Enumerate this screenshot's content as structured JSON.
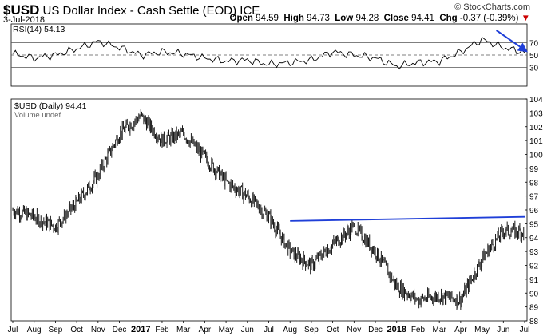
{
  "header": {
    "symbol": "$USD",
    "name": "US Dollar Index - Cash Settle (EOD)",
    "exchange": "ICE",
    "date": "3-Jul-2018",
    "brand": "© StockCharts.com",
    "open_label": "Open",
    "open": "94.59",
    "high_label": "High",
    "high": "94.73",
    "low_label": "Low",
    "low": "94.28",
    "close_label": "Close",
    "close": "94.41",
    "chg_label": "Chg",
    "chg": "-0.37 (-0.39%)",
    "chg_arrow": "▼"
  },
  "chart_data": [
    {
      "type": "line",
      "panel": "indicator",
      "legend": "RSI(14) 54.13",
      "ylim": [
        0,
        100
      ],
      "yticks": [
        30,
        50,
        70
      ],
      "reference_lines": [
        30,
        50,
        70
      ],
      "x": [
        "2016-07",
        "2016-08",
        "2016-09",
        "2016-10",
        "2016-11",
        "2016-12",
        "2017-01",
        "2017-02",
        "2017-03",
        "2017-04",
        "2017-05",
        "2017-06",
        "2017-07",
        "2017-08",
        "2017-09",
        "2017-10",
        "2017-11",
        "2017-12",
        "2018-01",
        "2018-02",
        "2018-03",
        "2018-04",
        "2018-05",
        "2018-06",
        "2018-07"
      ],
      "values": [
        52,
        45,
        50,
        60,
        72,
        62,
        50,
        55,
        52,
        45,
        40,
        42,
        35,
        38,
        42,
        55,
        50,
        45,
        32,
        38,
        40,
        55,
        75,
        62,
        54
      ],
      "annotation": {
        "type": "arrow",
        "direction": "down",
        "color": "#1f3fd8",
        "x_from": "2018-05",
        "x_to": "2018-07"
      }
    },
    {
      "type": "line",
      "panel": "price",
      "legend": "$USD (Daily) 94.41",
      "legend2": "Volume undef",
      "ylim": [
        88,
        104
      ],
      "yticks": [
        88,
        89,
        90,
        91,
        92,
        93,
        94,
        95,
        96,
        97,
        98,
        99,
        100,
        101,
        102,
        103,
        104
      ],
      "xticks": [
        "Jul",
        "Aug",
        "Sep",
        "Oct",
        "Nov",
        "Dec",
        "2017",
        "Feb",
        "Mar",
        "Apr",
        "May",
        "Jun",
        "Jul",
        "Aug",
        "Sep",
        "Oct",
        "Nov",
        "Dec",
        "2018",
        "Feb",
        "Mar",
        "Apr",
        "May",
        "Jun",
        "Jul"
      ],
      "x": [
        "2016-07",
        "2016-08",
        "2016-09",
        "2016-10",
        "2016-11",
        "2016-12",
        "2017-01",
        "2017-02",
        "2017-03",
        "2017-04",
        "2017-05",
        "2017-06",
        "2017-07",
        "2017-08",
        "2017-09",
        "2017-10",
        "2017-11",
        "2017-12",
        "2018-01",
        "2018-02",
        "2018-03",
        "2018-04",
        "2018-05",
        "2018-06",
        "2018-07"
      ],
      "values": [
        96.0,
        95.5,
        94.8,
        96.5,
        98.5,
        101.5,
        102.8,
        101.0,
        101.5,
        99.8,
        98.0,
        97.0,
        95.5,
        93.0,
        92.0,
        93.5,
        94.8,
        93.0,
        90.5,
        89.5,
        89.8,
        89.5,
        92.5,
        94.5,
        94.41
      ],
      "trendline": {
        "color": "#1f3fd8",
        "x_from": "2017-08",
        "y_from": 95.2,
        "x_to": "2018-07",
        "y_to": 95.5
      }
    }
  ]
}
